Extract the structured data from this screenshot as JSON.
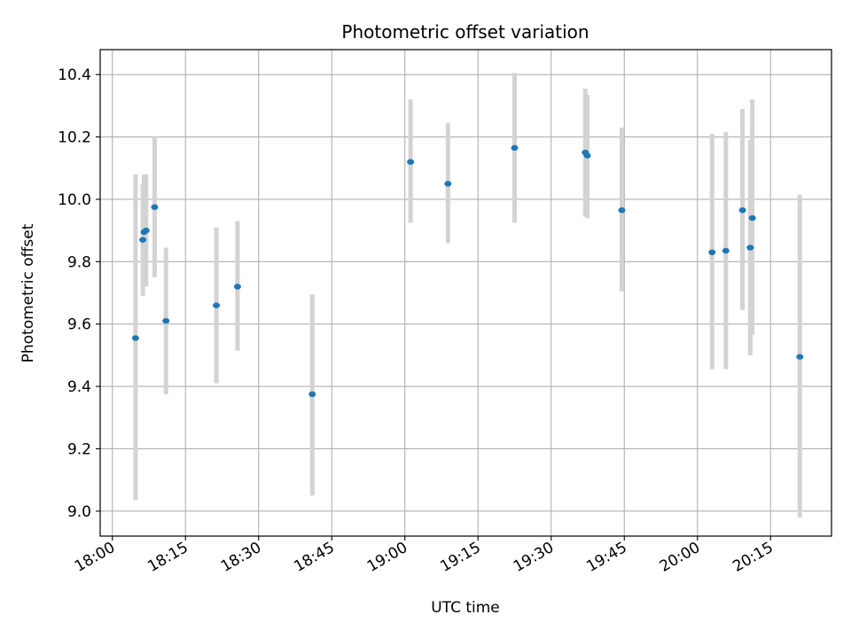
{
  "chart_data": {
    "type": "scatter",
    "title": "Photometric offset variation",
    "xlabel": "UTC time",
    "ylabel": "Photometric offset",
    "xlim": [
      "17:57:30",
      "20:27:30"
    ],
    "ylim": [
      8.92,
      10.48
    ],
    "x_ticks": [
      "18:00",
      "18:15",
      "18:30",
      "18:45",
      "19:00",
      "19:15",
      "19:30",
      "19:45",
      "20:00",
      "20:15"
    ],
    "y_ticks": [
      "9.0",
      "9.2",
      "9.4",
      "9.6",
      "9.8",
      "10.0",
      "10.2",
      "10.4"
    ],
    "grid": true,
    "legend": "none",
    "colors": {
      "point": "#1f77b4",
      "errorbar": "#d3d3d3",
      "grid": "#b0b0b0"
    },
    "series": [
      {
        "points": [
          {
            "x": "18:04:45",
            "y": 9.555,
            "ylo": 9.035,
            "yhi": 10.08
          },
          {
            "x": "18:06:15",
            "y": 9.87,
            "ylo": 9.69,
            "yhi": 10.05
          },
          {
            "x": "18:06:30",
            "y": 9.895,
            "ylo": 9.74,
            "yhi": 10.08
          },
          {
            "x": "18:06:55",
            "y": 9.9,
            "ylo": 9.72,
            "yhi": 10.08
          },
          {
            "x": "18:08:40",
            "y": 9.975,
            "ylo": 9.75,
            "yhi": 10.2
          },
          {
            "x": "18:11:00",
            "y": 9.61,
            "ylo": 9.375,
            "yhi": 9.845
          },
          {
            "x": "18:21:20",
            "y": 9.66,
            "ylo": 9.41,
            "yhi": 9.91
          },
          {
            "x": "18:25:40",
            "y": 9.72,
            "ylo": 9.515,
            "yhi": 9.93
          },
          {
            "x": "18:41:00",
            "y": 9.375,
            "ylo": 9.05,
            "yhi": 9.695
          },
          {
            "x": "19:01:10",
            "y": 10.12,
            "ylo": 9.925,
            "yhi": 10.32
          },
          {
            "x": "19:08:50",
            "y": 10.05,
            "ylo": 9.86,
            "yhi": 10.245
          },
          {
            "x": "19:22:30",
            "y": 10.165,
            "ylo": 9.925,
            "yhi": 10.405
          },
          {
            "x": "19:37:00",
            "y": 10.15,
            "ylo": 9.945,
            "yhi": 10.355
          },
          {
            "x": "19:37:25",
            "y": 10.14,
            "ylo": 9.94,
            "yhi": 10.335
          },
          {
            "x": "19:44:30",
            "y": 9.965,
            "ylo": 9.705,
            "yhi": 10.23
          },
          {
            "x": "20:03:00",
            "y": 9.83,
            "ylo": 9.455,
            "yhi": 10.21
          },
          {
            "x": "20:05:50",
            "y": 9.835,
            "ylo": 9.455,
            "yhi": 10.215
          },
          {
            "x": "20:09:15",
            "y": 9.965,
            "ylo": 9.645,
            "yhi": 10.29
          },
          {
            "x": "20:10:50",
            "y": 9.845,
            "ylo": 9.5,
            "yhi": 10.19
          },
          {
            "x": "20:11:15",
            "y": 9.94,
            "ylo": 9.565,
            "yhi": 10.32
          },
          {
            "x": "20:21:00",
            "y": 9.495,
            "ylo": 8.98,
            "yhi": 10.015
          }
        ]
      }
    ]
  }
}
